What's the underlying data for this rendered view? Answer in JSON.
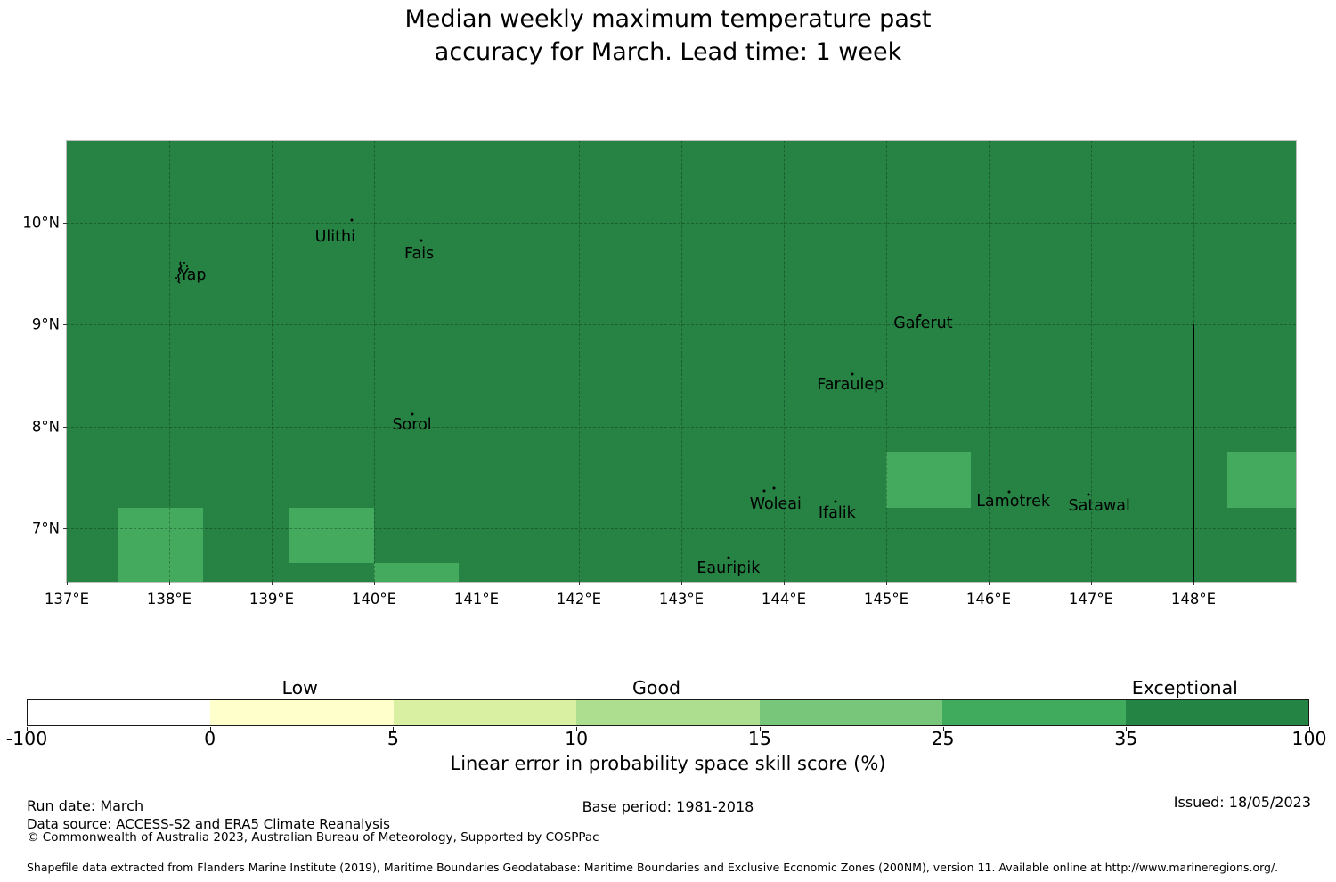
{
  "title": {
    "line1": "Median weekly maximum temperature past",
    "line2": "accuracy for March. Lead time: 1 week"
  },
  "chart_data": {
    "type": "heatmap",
    "title": "Median weekly maximum temperature past accuracy for March. Lead time: 1 week",
    "extent": {
      "lon_min": 137.0,
      "lon_max": 149.0,
      "lat_min": 6.477,
      "lat_max": 10.8
    },
    "x_ticks": [
      {
        "lon": 137,
        "label": "137°E"
      },
      {
        "lon": 138,
        "label": "138°E"
      },
      {
        "lon": 139,
        "label": "139°E"
      },
      {
        "lon": 140,
        "label": "140°E"
      },
      {
        "lon": 141,
        "label": "141°E"
      },
      {
        "lon": 142,
        "label": "142°E"
      },
      {
        "lon": 143,
        "label": "143°E"
      },
      {
        "lon": 144,
        "label": "144°E"
      },
      {
        "lon": 145,
        "label": "145°E"
      },
      {
        "lon": 146,
        "label": "146°E"
      },
      {
        "lon": 147,
        "label": "147°E"
      },
      {
        "lon": 148,
        "label": "148°E"
      }
    ],
    "y_ticks": [
      {
        "lat": 10,
        "label": "10°N"
      },
      {
        "lat": 9,
        "label": "9°N"
      },
      {
        "lat": 8,
        "label": "8°N"
      },
      {
        "lat": 7,
        "label": "7°N"
      }
    ],
    "grid_lons": [
      138,
      139,
      140,
      141,
      142,
      143,
      144,
      145,
      146,
      147,
      148
    ],
    "grid_lats": [
      7,
      8,
      9,
      10
    ],
    "background_value_bin": "35 to 100 (Exceptional)",
    "cell_value_bin": "25 to 35",
    "cells_25_35": [
      {
        "lon0": 137.5,
        "lon1": 138.33,
        "lat0": 6.477,
        "lat1": 7.2
      },
      {
        "lon0": 139.17,
        "lon1": 140.0,
        "lat0": 6.66,
        "lat1": 7.2
      },
      {
        "lon0": 140.0,
        "lon1": 140.83,
        "lat0": 6.477,
        "lat1": 6.66
      },
      {
        "lon0": 145.0,
        "lon1": 145.83,
        "lat0": 7.2,
        "lat1": 7.75
      },
      {
        "lon0": 148.33,
        "lon1": 149.0,
        "lat0": 7.2,
        "lat1": 7.75
      }
    ],
    "eez_line": {
      "lon": 148.0,
      "lat_top": 9.0,
      "lat_bottom": 6.477
    },
    "islands": [
      {
        "name": "Yap",
        "label_lon": 138.23,
        "label_lat": 9.48,
        "dots": [],
        "shape": true
      },
      {
        "name": "Ulithi",
        "label_lon": 139.62,
        "label_lat": 9.86,
        "dots": [
          [
            139.78,
            10.02
          ]
        ]
      },
      {
        "name": "Fais",
        "label_lon": 140.44,
        "label_lat": 9.69,
        "dots": [
          [
            140.46,
            9.82
          ]
        ]
      },
      {
        "name": "Sorol",
        "label_lon": 140.37,
        "label_lat": 8.01,
        "dots": [
          [
            140.37,
            8.12
          ]
        ]
      },
      {
        "name": "Gaferut",
        "label_lon": 145.36,
        "label_lat": 9.01,
        "dots": [
          [
            145.33,
            9.09
          ]
        ]
      },
      {
        "name": "Faraulep",
        "label_lon": 144.65,
        "label_lat": 8.41,
        "dots": [
          [
            144.67,
            8.51
          ]
        ]
      },
      {
        "name": "Woleai",
        "label_lon": 143.92,
        "label_lat": 7.24,
        "dots": [
          [
            143.81,
            7.37
          ],
          [
            143.9,
            7.39
          ]
        ]
      },
      {
        "name": "Ifalik",
        "label_lon": 144.52,
        "label_lat": 7.15,
        "dots": [
          [
            144.5,
            7.26
          ]
        ]
      },
      {
        "name": "Lamotrek",
        "label_lon": 146.24,
        "label_lat": 7.26,
        "dots": [
          [
            146.2,
            7.36
          ]
        ]
      },
      {
        "name": "Satawal",
        "label_lon": 147.08,
        "label_lat": 7.22,
        "dots": [
          [
            146.97,
            7.33
          ]
        ]
      },
      {
        "name": "Eauripik",
        "label_lon": 143.46,
        "label_lat": 6.61,
        "dots": [
          [
            143.46,
            6.71
          ]
        ]
      }
    ],
    "map_colors": {
      "background": "#268343",
      "cell_25_35": "#44ab5e"
    },
    "colorbar": {
      "label": "Linear error in probability space skill score (%)",
      "ticks": [
        "-100",
        "0",
        "5",
        "10",
        "15",
        "25",
        "35",
        "100"
      ],
      "segment_colors": [
        "#ffffff",
        "#ffffcc",
        "#d9f0a3",
        "#addd8e",
        "#78c679",
        "#41ab5d",
        "#238443"
      ],
      "categories": [
        {
          "label": "Low",
          "position": 0.213
        },
        {
          "label": "Good",
          "position": 0.491
        },
        {
          "label": "Exceptional",
          "position": 0.903
        }
      ]
    }
  },
  "footer": {
    "run_date": "Run date: March",
    "base_period": "Base period: 1981-2018",
    "issued": "Issued: 18/05/2023",
    "data_source": "Data source: ACCESS-S2 and ERA5 Climate Reanalysis",
    "copyright": "© Commonwealth of Australia 2023, Australian Bureau of Meteorology, Supported by COSPPac",
    "shapefile": "Shapefile data extracted from Flanders Marine Institute (2019), Maritime Boundaries Geodatabase: Maritime Boundaries and Exclusive Economic Zones (200NM), version 11. Available online at http://www.marineregions.org/."
  }
}
